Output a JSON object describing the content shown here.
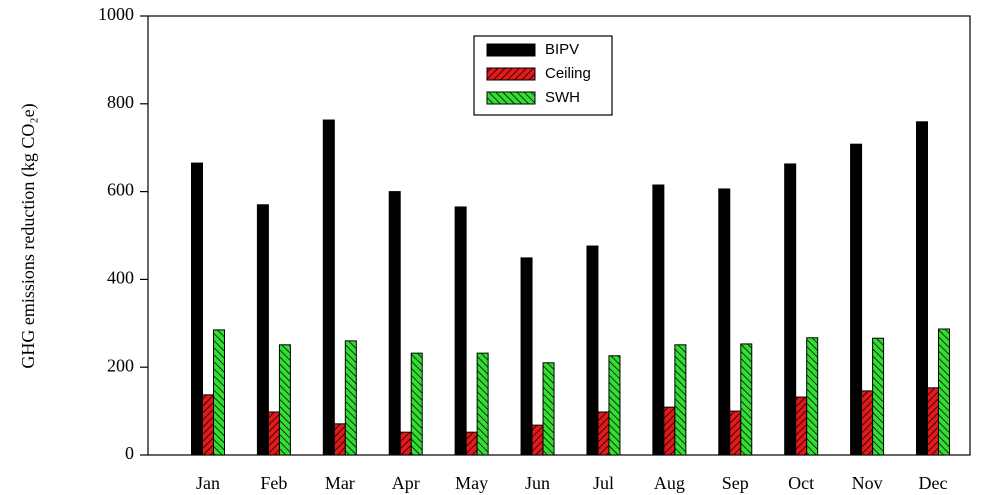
{
  "chart_data": {
    "type": "bar",
    "ylabel": "GHG emissions reduction (kg CO₂e)",
    "categories": [
      "Jan",
      "Feb",
      "Mar",
      "Apr",
      "May",
      "Jun",
      "Jul",
      "Aug",
      "Sep",
      "Oct",
      "Nov",
      "Dec"
    ],
    "series": [
      {
        "name": "BIPV",
        "color": "#000000",
        "values": [
          665,
          570,
          763,
          600,
          565,
          449,
          476,
          615,
          606,
          663,
          708,
          759
        ]
      },
      {
        "name": "Ceiling",
        "color": "#e31a1c",
        "values": [
          137,
          98,
          71,
          52,
          52,
          68,
          98,
          109,
          100,
          132,
          146,
          153
        ]
      },
      {
        "name": "SWH",
        "color": "#33dd33",
        "values": [
          285,
          251,
          260,
          232,
          232,
          210,
          226,
          251,
          253,
          267,
          266,
          287
        ]
      }
    ],
    "ylim": [
      0,
      1000
    ],
    "yticks": [
      0,
      200,
      400,
      600,
      800,
      1000
    ]
  }
}
